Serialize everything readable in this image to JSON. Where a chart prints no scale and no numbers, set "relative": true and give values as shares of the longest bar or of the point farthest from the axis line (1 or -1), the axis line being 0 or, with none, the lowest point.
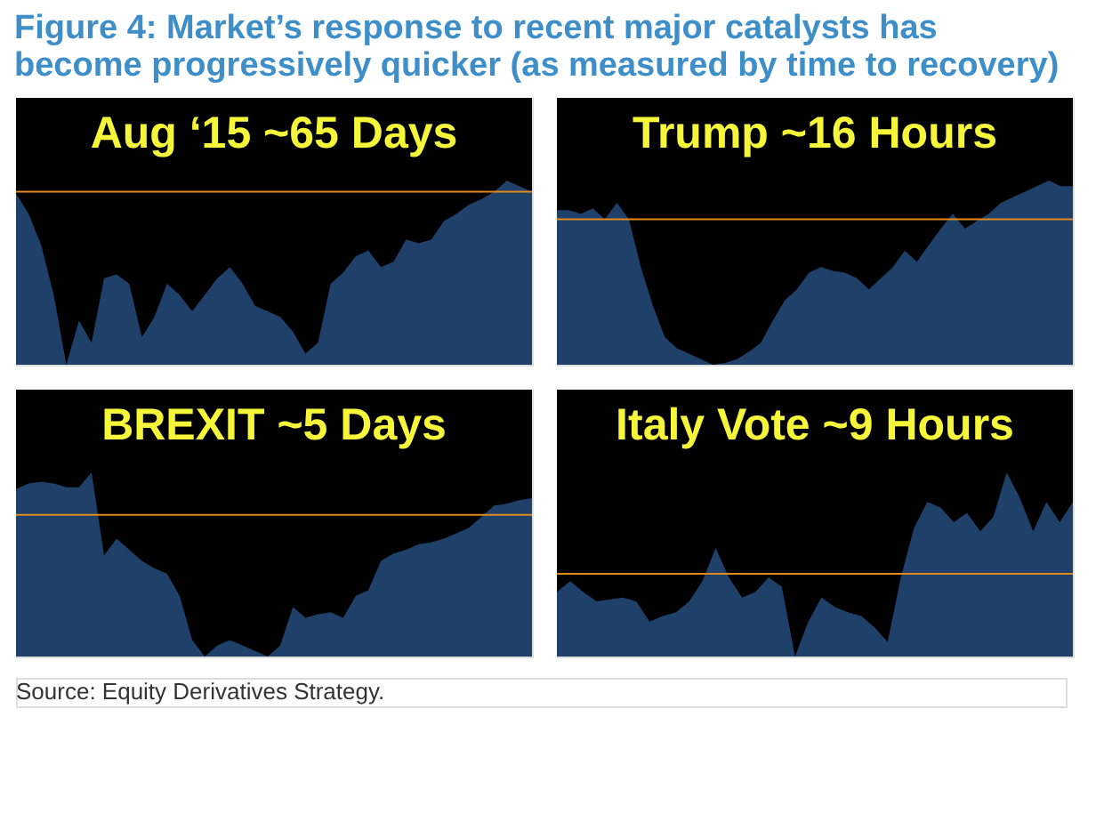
{
  "chart_data": [
    {
      "type": "area",
      "relative": true,
      "title": "Figure 4: Market’s response to recent major catalysts has become progressively quicker (as measured by time to recovery)",
      "annotations": [
        "Aug ‘15 ~65 Days"
      ],
      "tick_labels": false,
      "categories": [
        null,
        null,
        null,
        null,
        null,
        null,
        null,
        null,
        null,
        null,
        null,
        null,
        null,
        null,
        null,
        null,
        null,
        null,
        null,
        null,
        null,
        null,
        null,
        null,
        null,
        null,
        null,
        null,
        null,
        null,
        null,
        null,
        null,
        null,
        null,
        null,
        null,
        null,
        null,
        null,
        null,
        null
      ],
      "series": [
        {
          "color": "#1f4068",
          "values": [
            0.93,
            0.82,
            0.65,
            0.38,
            0,
            0.24,
            0.12,
            0.47,
            0.49,
            0.44,
            0.15,
            0.26,
            0.44,
            0.38,
            0.29,
            0.38,
            0.47,
            0.53,
            0.44,
            0.32,
            0.29,
            0.26,
            0.18,
            0.06,
            0.12,
            0.44,
            0.5,
            0.59,
            0.62,
            0.53,
            0.56,
            0.68,
            0.66,
            0.68,
            0.78,
            0.82,
            0.87,
            0.9,
            0.94,
            1,
            0.97,
            0.94
          ]
        }
      ],
      "ref_lines": [
        {
          "axis": "y",
          "value": 0.94,
          "color": "#e08a1e"
        }
      ]
    },
    {
      "type": "area",
      "relative": true,
      "annotations": [
        "Trump ~16 Hours"
      ],
      "tick_labels": false,
      "categories": [
        null,
        null,
        null,
        null,
        null,
        null,
        null,
        null,
        null,
        null,
        null,
        null,
        null,
        null,
        null,
        null,
        null,
        null,
        null,
        null,
        null,
        null,
        null,
        null,
        null,
        null,
        null,
        null,
        null,
        null,
        null,
        null,
        null,
        null,
        null,
        null,
        null,
        null,
        null,
        null,
        null,
        null,
        null,
        null
      ],
      "series": [
        {
          "color": "#1f4068",
          "values": [
            0.84,
            0.84,
            0.82,
            0.85,
            0.79,
            0.88,
            0.79,
            0.53,
            0.32,
            0.15,
            0.09,
            0.06,
            0.03,
            0,
            0.01,
            0.03,
            0.07,
            0.12,
            0.24,
            0.35,
            0.41,
            0.5,
            0.53,
            0.51,
            0.5,
            0.47,
            0.41,
            0.47,
            0.53,
            0.62,
            0.56,
            0.65,
            0.74,
            0.82,
            0.74,
            0.78,
            0.82,
            0.88,
            0.91,
            0.94,
            0.97,
            1,
            0.97,
            0.97
          ]
        }
      ],
      "ref_lines": [
        {
          "axis": "y",
          "value": 0.79,
          "color": "#e08a1e"
        }
      ]
    },
    {
      "type": "area",
      "relative": true,
      "annotations": [
        "BREXIT  ~5 Days"
      ],
      "tick_labels": false,
      "categories": [
        null,
        null,
        null,
        null,
        null,
        null,
        null,
        null,
        null,
        null,
        null,
        null,
        null,
        null,
        null,
        null,
        null,
        null,
        null,
        null,
        null,
        null,
        null,
        null,
        null,
        null,
        null,
        null,
        null,
        null,
        null,
        null,
        null,
        null,
        null,
        null,
        null,
        null,
        null,
        null,
        null,
        null
      ],
      "series": [
        {
          "color": "#1f4068",
          "values": [
            0.91,
            0.94,
            0.95,
            0.94,
            0.92,
            0.92,
            1,
            0.55,
            0.64,
            0.58,
            0.52,
            0.48,
            0.45,
            0.33,
            0.09,
            0,
            0.06,
            0.09,
            0.06,
            0.03,
            0,
            0.06,
            0.27,
            0.21,
            0.23,
            0.24,
            0.21,
            0.33,
            0.36,
            0.52,
            0.56,
            0.58,
            0.61,
            0.62,
            0.64,
            0.67,
            0.7,
            0.76,
            0.82,
            0.83,
            0.85,
            0.86
          ]
        }
      ],
      "ref_lines": [
        {
          "axis": "y",
          "value": 0.77,
          "color": "#e08a1e"
        }
      ]
    },
    {
      "type": "area",
      "relative": true,
      "annotations": [
        "Italy Vote ~9 Hours",
        "Source: Equity Derivatives Strategy."
      ],
      "tick_labels": false,
      "categories": [
        null,
        null,
        null,
        null,
        null,
        null,
        null,
        null,
        null,
        null,
        null,
        null,
        null,
        null,
        null,
        null,
        null,
        null,
        null,
        null,
        null,
        null,
        null,
        null,
        null,
        null,
        null,
        null,
        null,
        null,
        null,
        null,
        null,
        null,
        null,
        null,
        null,
        null,
        null,
        null
      ],
      "series": [
        {
          "color": "#1f4068",
          "values": [
            0.35,
            0.41,
            0.35,
            0.3,
            0.31,
            0.32,
            0.3,
            0.19,
            0.22,
            0.24,
            0.3,
            0.41,
            0.59,
            0.43,
            0.32,
            0.35,
            0.43,
            0.38,
            0,
            0.19,
            0.32,
            0.27,
            0.24,
            0.22,
            0.16,
            0.08,
            0.43,
            0.7,
            0.84,
            0.81,
            0.73,
            0.78,
            0.68,
            0.76,
            1,
            0.86,
            0.68,
            0.84,
            0.73,
            0.84
          ]
        }
      ],
      "ref_lines": [
        {
          "axis": "y",
          "value": 0.45,
          "color": "#e08a1e"
        }
      ]
    }
  ]
}
